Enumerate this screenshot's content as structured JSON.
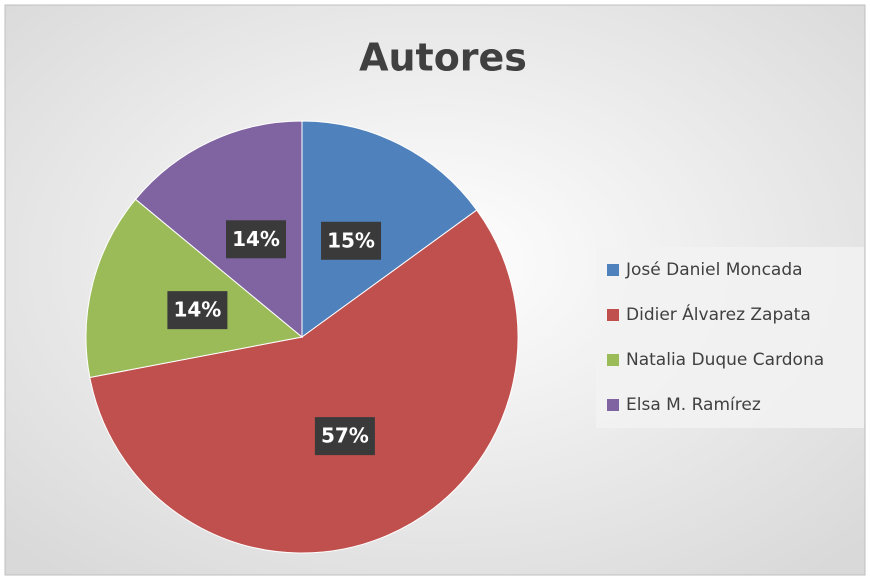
{
  "chart_data": {
    "type": "pie",
    "title": "Autores",
    "categories": [
      "José Daniel Moncada",
      "Didier Álvarez Zapata",
      "Natalia Duque Cardona",
      "Elsa M. Ramírez"
    ],
    "values": [
      15,
      57,
      14,
      14
    ],
    "value_labels": [
      "15%",
      "57%",
      "14%",
      "14%"
    ],
    "colors": [
      "#4f81bd",
      "#c0504d",
      "#9bbb59",
      "#8064a2"
    ],
    "legend": "right"
  }
}
